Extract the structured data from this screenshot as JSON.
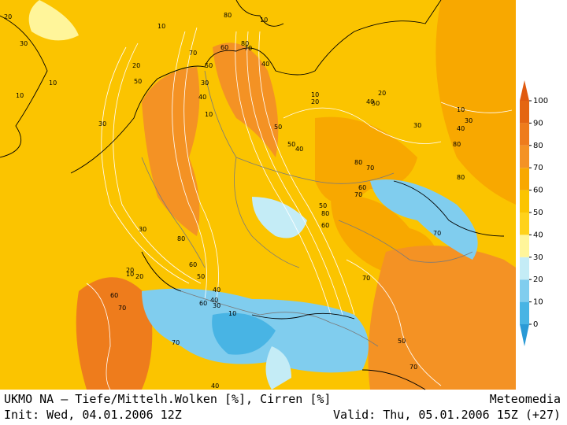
{
  "footer": {
    "title": "UKMO NA – Tiefe/Mittelh.Wolken [%], Cirren [%]",
    "source": "Meteomedia",
    "init": "Init: Wed, 04.01.2006 12Z",
    "valid": "Valid: Thu, 05.01.2006 15Z (+27)"
  },
  "legend": {
    "levels": [
      0,
      10,
      20,
      30,
      40,
      50,
      60,
      70,
      80,
      90,
      100
    ],
    "colors": [
      "#48b4e4",
      "#80cdee",
      "#c4ecf6",
      "#fff59a",
      "#ffd21a",
      "#fbc400",
      "#f8a800",
      "#f49224",
      "#ee7c1c",
      "#e46612"
    ],
    "under_color": "#2a9ad6",
    "over_color": "#e05a10"
  },
  "contour_labels": [
    20,
    30,
    10,
    10,
    80,
    60,
    80,
    10,
    70,
    20,
    50,
    10,
    70,
    50,
    40,
    30,
    10,
    40,
    50,
    30,
    10,
    20,
    40,
    50,
    20,
    10,
    30,
    40,
    80,
    30,
    50,
    40,
    80,
    70,
    60,
    70,
    50,
    80,
    60,
    70,
    60,
    30,
    80,
    40,
    50,
    60,
    20,
    10,
    40,
    30,
    20,
    60,
    70,
    70,
    70,
    50,
    70,
    80,
    40,
    10
  ]
}
